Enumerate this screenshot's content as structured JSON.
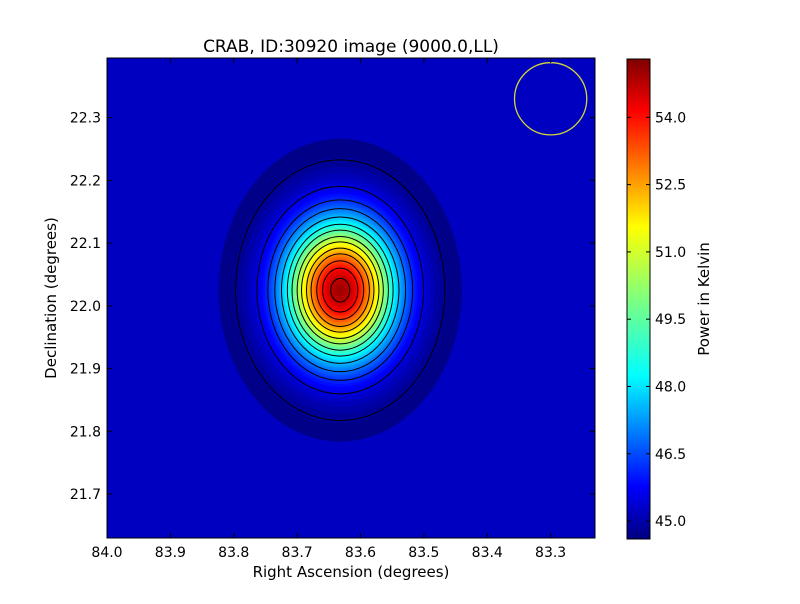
{
  "chart_data": {
    "type": "heatmap",
    "title": "CRAB, ID:30920 image (9000.0,LL)",
    "xlabel": "Right Ascension (degrees)",
    "ylabel": "Declination (degrees)",
    "xlim": [
      84.0,
      83.23
    ],
    "ylim": [
      21.63,
      22.395
    ],
    "x_ticks": [
      "84.0",
      "83.9",
      "83.8",
      "83.7",
      "83.6",
      "83.5",
      "83.4",
      "83.3"
    ],
    "y_ticks": [
      "21.7",
      "21.8",
      "21.9",
      "22.0",
      "22.1",
      "22.2",
      "22.3"
    ],
    "source": {
      "ra": 83.632,
      "dec": 22.025,
      "sigma_ra": 0.062,
      "sigma_dec": 0.078,
      "peak": 55.0,
      "background": 44.6
    },
    "beam": {
      "ra": 83.3,
      "dec": 22.33,
      "radius_deg": 0.057,
      "color": "#d4d43a"
    },
    "contour_levels": [
      44.9,
      45.7,
      46.5,
      47.2,
      48.0,
      48.8,
      49.5,
      50.3,
      51.0,
      51.8,
      52.5,
      53.3,
      54.0,
      54.7
    ],
    "colorbar": {
      "label": "Power in Kelvin",
      "range": [
        44.6,
        55.3
      ],
      "ticks": [
        "45.0",
        "46.5",
        "48.0",
        "49.5",
        "51.0",
        "52.5",
        "54.0"
      ]
    },
    "grid": false
  }
}
